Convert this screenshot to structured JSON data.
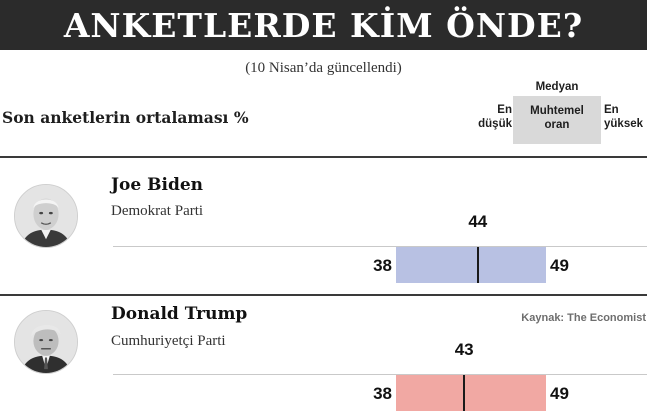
{
  "banner": {
    "title": "ANKETLERDE KİM ÖNDE?"
  },
  "updated_note": "(10 Nisan’da güncellendi)",
  "columns": {
    "section_label": "Son anketlerin ortalaması %",
    "median_label": "Medyan",
    "low_label": "En\ndüşük",
    "likely_label": "Muhtemel\noran",
    "high_label": "En\nyüksek"
  },
  "source": "Kaynak: The Economist",
  "colors": {
    "biden_bar": "#b8c1e3",
    "trump_bar": "#f1a8a3",
    "banner": "#2b2b2b"
  },
  "chart_data": {
    "type": "bar",
    "title": "ANKETLERDE KİM ÖNDE?",
    "subtitle": "(10 Nisan’da güncellendi)",
    "ylabel": "Son anketlerin ortalaması %",
    "candidates": [
      {
        "name": "Joe Biden",
        "party": "Demokrat Parti",
        "low": 38,
        "median": 44,
        "high": 49,
        "color": "#b8c1e3"
      },
      {
        "name": "Donald Trump",
        "party": "Cumhuriyetçi Parti",
        "low": 38,
        "median": 43,
        "high": 49,
        "color": "#f1a8a3"
      }
    ],
    "xlim": [
      38,
      49
    ]
  }
}
